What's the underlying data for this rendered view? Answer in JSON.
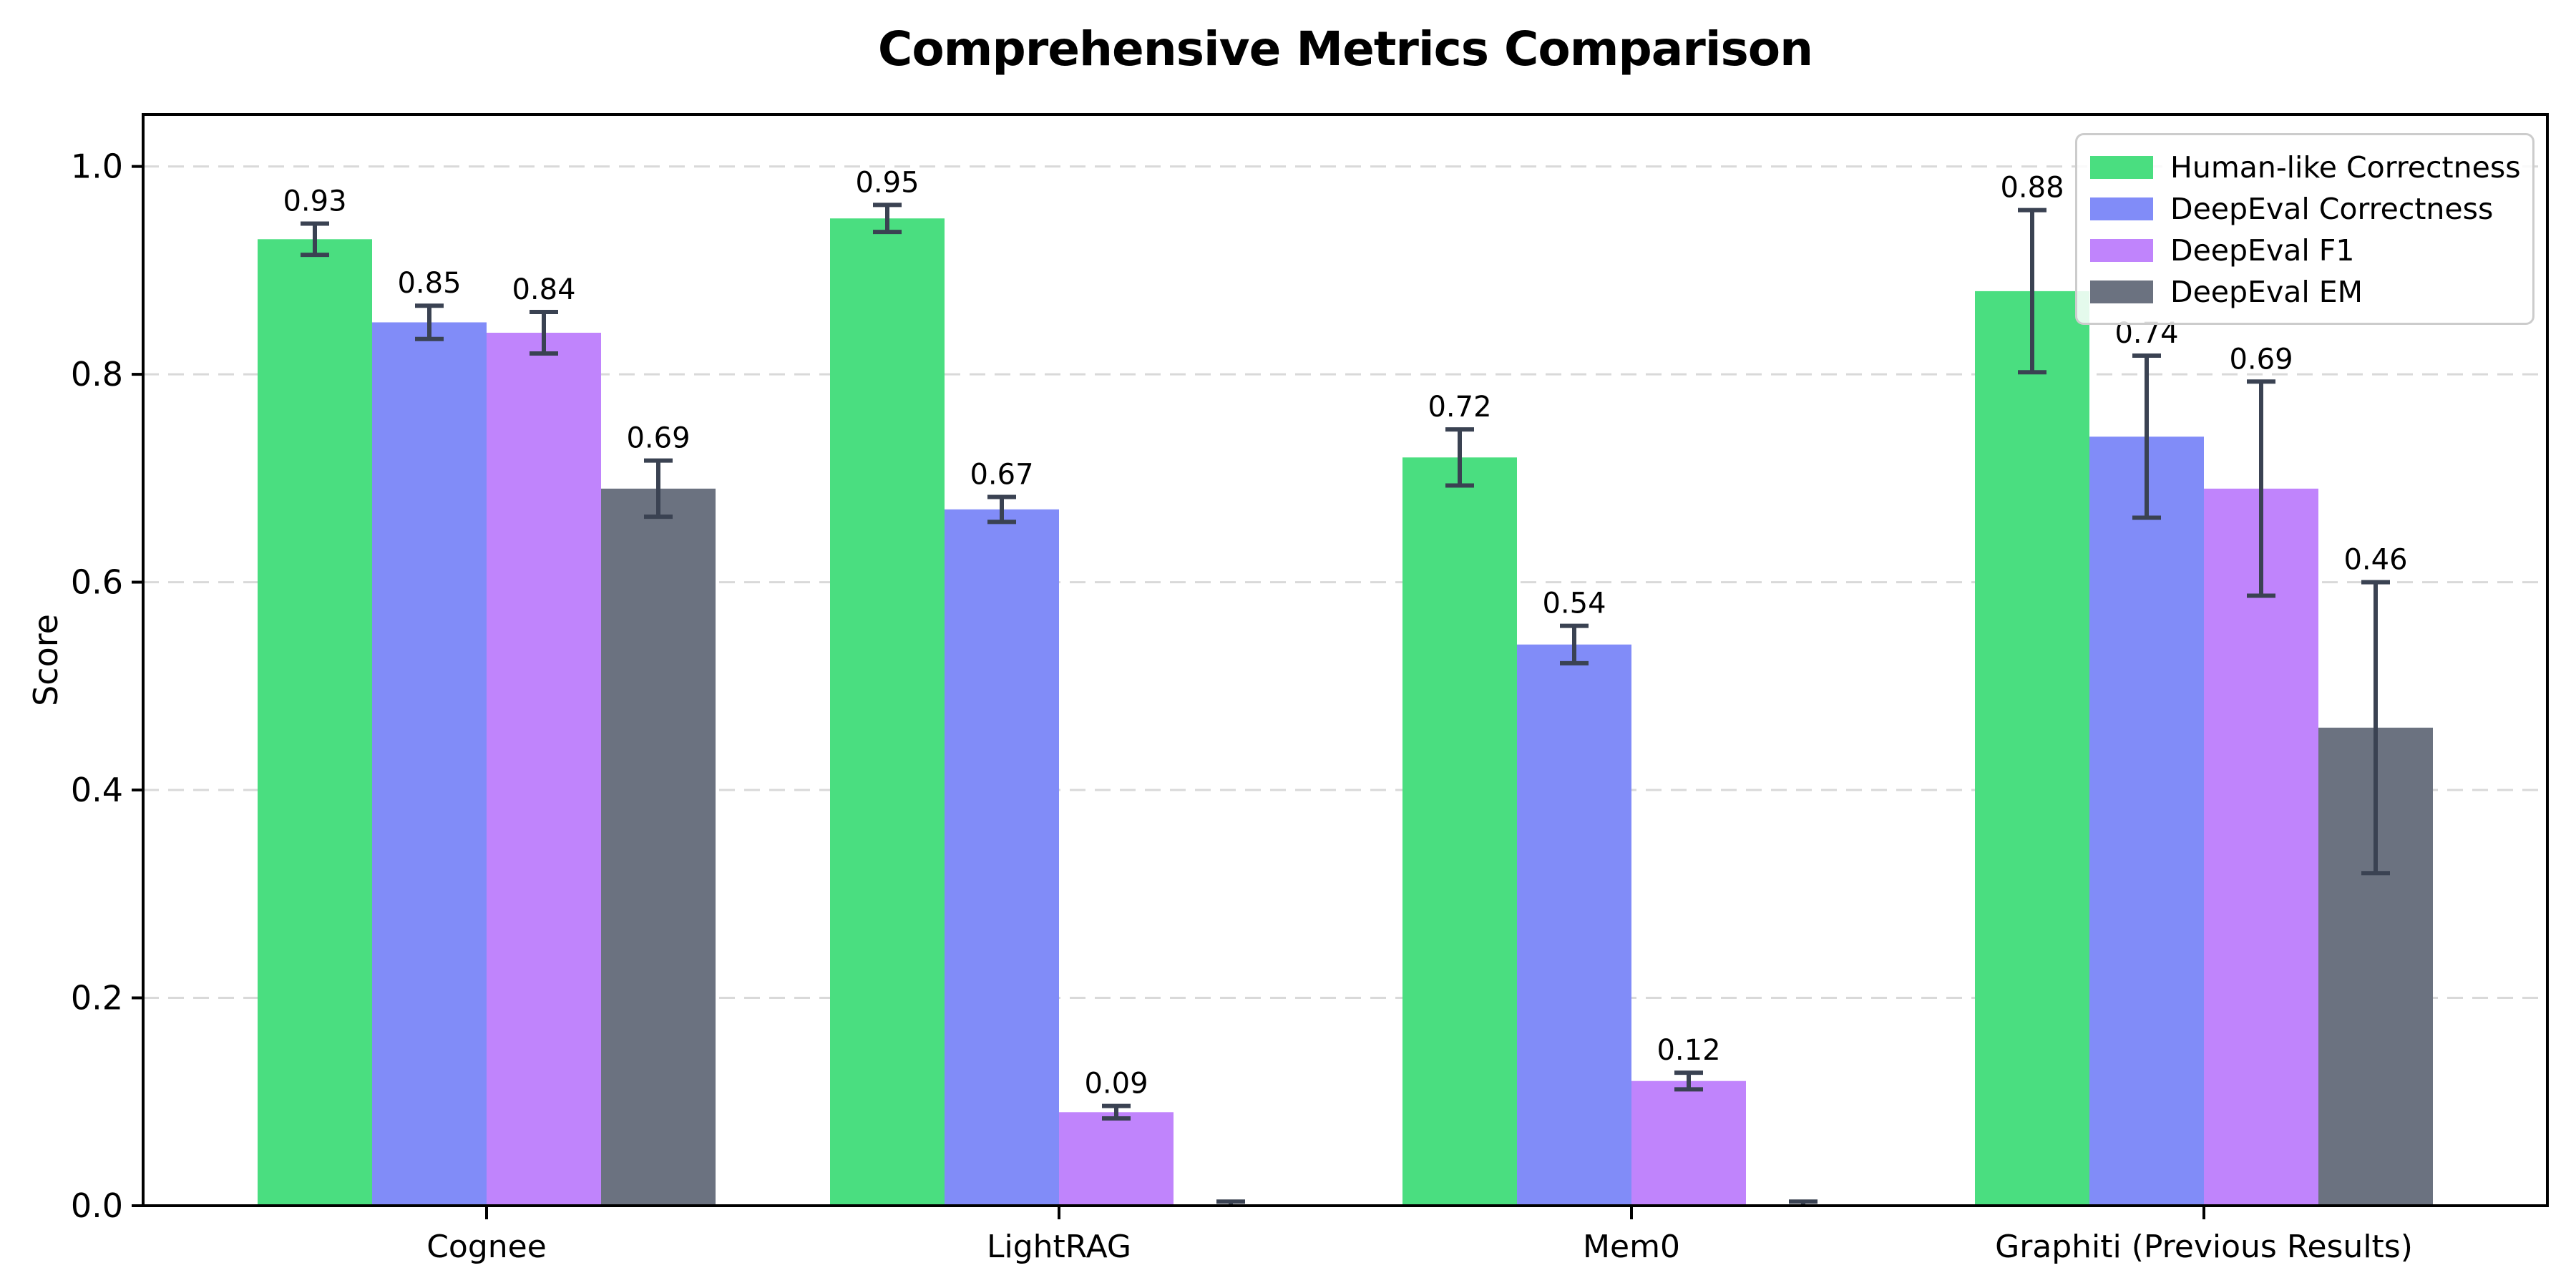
{
  "chart_data": {
    "type": "bar",
    "title": "Comprehensive Metrics Comparison",
    "xlabel": "",
    "ylabel": "Score",
    "ylim": [
      0,
      1.05
    ],
    "yticks": [
      "0.0",
      "0.2",
      "0.4",
      "0.6",
      "0.8",
      "1.0"
    ],
    "ytick_values": [
      0.0,
      0.2,
      0.4,
      0.6,
      0.8,
      1.0
    ],
    "grid": "horizontal-dashed",
    "legend_position": "upper-right",
    "categories": [
      "Cognee",
      "LightRAG",
      "Mem0",
      "Graphiti (Previous Results)"
    ],
    "series": [
      {
        "name": "Human-like Correctness",
        "color": "#4ade80",
        "values": [
          0.93,
          0.95,
          0.72,
          0.88
        ],
        "errors": [
          0.015,
          0.013,
          0.027,
          0.078
        ],
        "labels": [
          "0.93",
          "0.95",
          "0.72",
          "0.88"
        ]
      },
      {
        "name": "DeepEval Correctness",
        "color": "#818cf8",
        "values": [
          0.85,
          0.67,
          0.54,
          0.74
        ],
        "errors": [
          0.016,
          0.012,
          0.018,
          0.078
        ],
        "labels": [
          "0.85",
          "0.67",
          "0.54",
          "0.74"
        ]
      },
      {
        "name": "DeepEval F1",
        "color": "#c084fc",
        "values": [
          0.84,
          0.09,
          0.12,
          0.69
        ],
        "errors": [
          0.02,
          0.006,
          0.008,
          0.103
        ],
        "labels": [
          "0.84",
          "0.09",
          "0.12",
          "0.69"
        ]
      },
      {
        "name": "DeepEval EM",
        "color": "#6b7280",
        "values": [
          0.69,
          0.0,
          0.0,
          0.46
        ],
        "errors": [
          0.027,
          0.004,
          0.004,
          0.14
        ],
        "labels": [
          "0.69",
          "",
          "",
          "0.46"
        ]
      }
    ],
    "error_bar_color": "#3a4252",
    "grid_color": "#d9d9d9",
    "axis_color": "#000000",
    "text_color": "#000000"
  }
}
